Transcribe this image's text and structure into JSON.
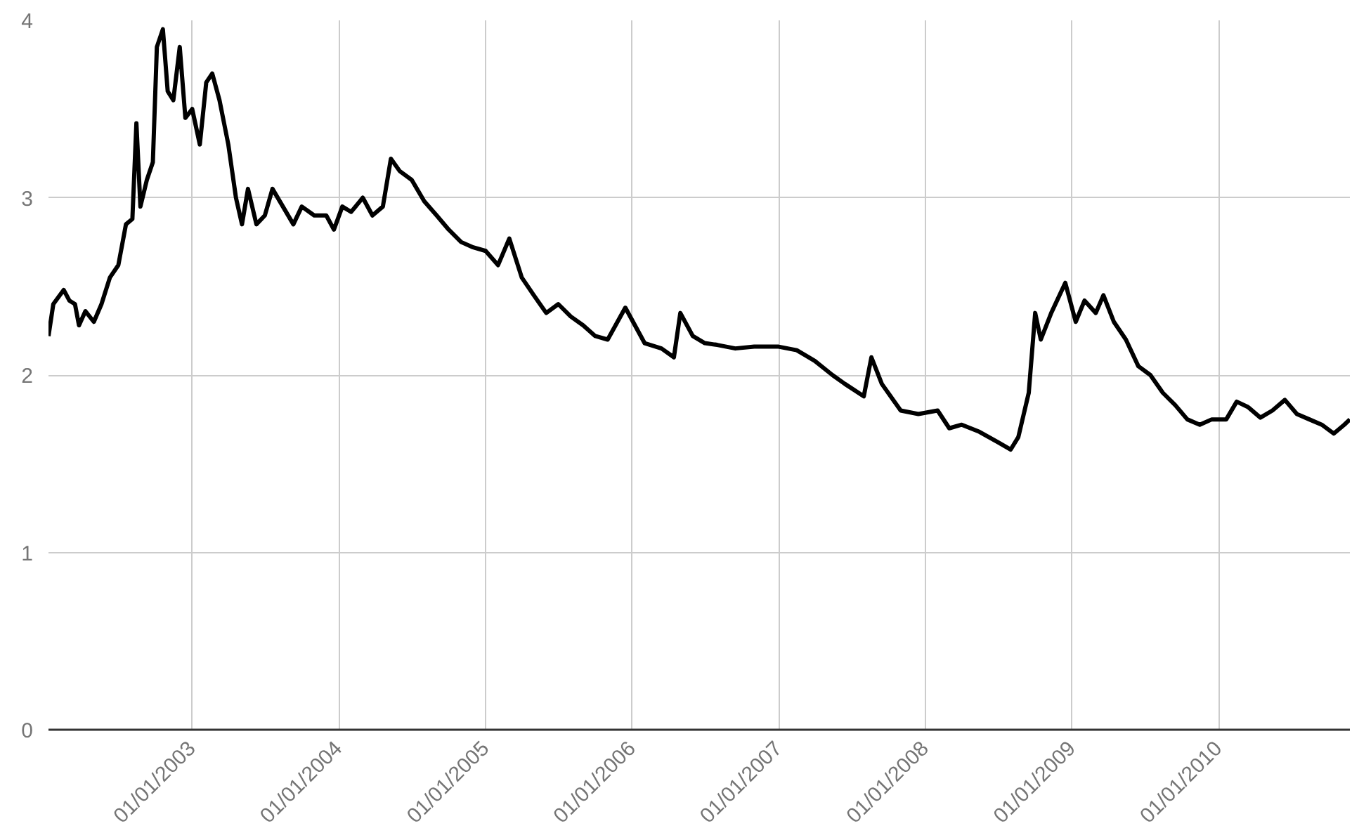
{
  "chart_data": {
    "type": "line",
    "x": [
      "2002-01-08",
      "2002-01-20",
      "2002-02-15",
      "2002-03-01",
      "2002-03-15",
      "2002-03-25",
      "2002-04-10",
      "2002-05-01",
      "2002-05-20",
      "2002-06-10",
      "2002-07-01",
      "2002-07-20",
      "2002-08-05",
      "2002-08-15",
      "2002-08-25",
      "2002-09-10",
      "2002-09-25",
      "2002-10-05",
      "2002-10-20",
      "2002-11-01",
      "2002-11-15",
      "2002-12-01",
      "2002-12-15",
      "2003-01-01",
      "2003-01-20",
      "2003-02-05",
      "2003-02-20",
      "2003-03-10",
      "2003-04-01",
      "2003-04-20",
      "2003-05-05",
      "2003-05-20",
      "2003-06-10",
      "2003-07-01",
      "2003-07-20",
      "2003-08-15",
      "2003-09-10",
      "2003-10-01",
      "2003-11-01",
      "2003-12-01",
      "2003-12-20",
      "2004-01-10",
      "2004-02-01",
      "2004-03-01",
      "2004-03-25",
      "2004-04-20",
      "2004-05-10",
      "2004-06-01",
      "2004-07-01",
      "2004-08-01",
      "2004-09-01",
      "2004-10-01",
      "2004-11-01",
      "2004-12-01",
      "2005-01-01",
      "2005-02-01",
      "2005-03-01",
      "2005-04-01",
      "2005-05-01",
      "2005-06-01",
      "2005-07-01",
      "2005-08-01",
      "2005-09-01",
      "2005-10-01",
      "2005-11-01",
      "2005-12-15",
      "2006-02-01",
      "2006-03-15",
      "2006-04-15",
      "2006-05-01",
      "2006-06-01",
      "2006-07-01",
      "2006-08-01",
      "2006-09-15",
      "2006-11-01",
      "2007-01-01",
      "2007-02-15",
      "2007-04-01",
      "2007-05-15",
      "2007-06-15",
      "2007-08-01",
      "2007-08-20",
      "2007-09-15",
      "2007-11-01",
      "2007-12-15",
      "2008-02-01",
      "2008-03-01",
      "2008-04-01",
      "2008-05-15",
      "2008-07-01",
      "2008-08-01",
      "2008-08-20",
      "2008-09-15",
      "2008-10-01",
      "2008-10-15",
      "2008-11-10",
      "2008-12-15",
      "2009-01-10",
      "2009-02-01",
      "2009-03-01",
      "2009-03-20",
      "2009-04-15",
      "2009-05-15",
      "2009-06-15",
      "2009-07-15",
      "2009-08-15",
      "2009-09-15",
      "2009-10-15",
      "2009-11-15",
      "2009-12-15",
      "2010-01-20",
      "2010-02-15",
      "2010-03-15",
      "2010-04-15",
      "2010-05-15",
      "2010-06-15",
      "2010-07-15",
      "2010-08-15",
      "2010-09-15",
      "2010-10-15",
      "2010-11-10",
      "2010-11-24"
    ],
    "series": [
      {
        "color": "#000000",
        "values": [
          2.22,
          2.4,
          2.48,
          2.42,
          2.4,
          2.28,
          2.36,
          2.3,
          2.4,
          2.55,
          2.62,
          2.85,
          2.88,
          3.42,
          2.95,
          3.1,
          3.2,
          3.85,
          3.95,
          3.6,
          3.55,
          3.85,
          3.45,
          3.5,
          3.3,
          3.65,
          3.7,
          3.55,
          3.3,
          3.0,
          2.85,
          3.05,
          2.85,
          2.9,
          3.05,
          2.95,
          2.85,
          2.95,
          2.9,
          2.9,
          2.82,
          2.95,
          2.92,
          3.0,
          2.9,
          2.95,
          3.22,
          3.15,
          3.1,
          2.98,
          2.9,
          2.82,
          2.75,
          2.72,
          2.7,
          2.62,
          2.77,
          2.55,
          2.45,
          2.35,
          2.4,
          2.33,
          2.28,
          2.22,
          2.2,
          2.38,
          2.18,
          2.15,
          2.1,
          2.35,
          2.22,
          2.18,
          2.17,
          2.15,
          2.16,
          2.16,
          2.14,
          2.08,
          2.0,
          1.95,
          1.88,
          2.1,
          1.95,
          1.8,
          1.78,
          1.8,
          1.7,
          1.72,
          1.68,
          1.62,
          1.58,
          1.65,
          1.9,
          2.35,
          2.2,
          2.35,
          2.52,
          2.3,
          2.42,
          2.35,
          2.45,
          2.3,
          2.2,
          2.05,
          2.0,
          1.9,
          1.83,
          1.75,
          1.72,
          1.75,
          1.75,
          1.85,
          1.82,
          1.76,
          1.8,
          1.86,
          1.78,
          1.75,
          1.72,
          1.67,
          1.72,
          1.75
        ]
      }
    ],
    "xlim": [
      "2002-01-08",
      "2010-11-24"
    ],
    "xticks": [
      {
        "value": "2003-01-01",
        "label": "01/01/2003"
      },
      {
        "value": "2004-01-01",
        "label": "01/01/2004"
      },
      {
        "value": "2005-01-01",
        "label": "01/01/2005"
      },
      {
        "value": "2006-01-01",
        "label": "01/01/2006"
      },
      {
        "value": "2007-01-01",
        "label": "01/01/2007"
      },
      {
        "value": "2008-01-01",
        "label": "01/01/2008"
      },
      {
        "value": "2009-01-01",
        "label": "01/01/2009"
      },
      {
        "value": "2010-01-01",
        "label": "01/01/2010"
      }
    ],
    "ylim": [
      0,
      4
    ],
    "yticks": [
      0,
      1,
      2,
      3,
      4
    ],
    "grid": true,
    "marker": "none",
    "line_style": "solid"
  }
}
